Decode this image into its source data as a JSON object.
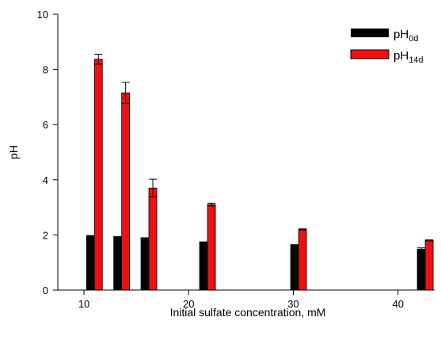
{
  "chart_data": {
    "type": "bar",
    "title": "",
    "xlabel": "Initial sulfate concentration, mM",
    "ylabel": "pH",
    "xlim": [
      7.5,
      43.5
    ],
    "ylim": [
      0,
      10
    ],
    "xticks": [
      10,
      20,
      30,
      40
    ],
    "yticks": [
      0,
      2,
      4,
      6,
      8,
      10
    ],
    "xtick_labels": [
      "10",
      "20",
      "30",
      "40"
    ],
    "ytick_labels": [
      "0",
      "2",
      "4",
      "6",
      "8",
      "10"
    ],
    "x": [
      11,
      13.6,
      16.2,
      21.8,
      30.5,
      42.6
    ],
    "grid": false,
    "legend_position": "top-right",
    "series": [
      {
        "name": "pH0d",
        "legend_main": "pH",
        "legend_sub": "0d",
        "color": "#000000",
        "values": [
          1.98,
          1.94,
          1.9,
          1.75,
          1.65,
          1.48
        ],
        "errors": [
          0,
          0,
          0,
          0,
          0,
          0.05
        ]
      },
      {
        "name": "pH14d",
        "legend_main": "pH",
        "legend_sub": "14d",
        "color": "#ee1111",
        "values": [
          8.37,
          7.15,
          3.7,
          3.1,
          2.2,
          1.8
        ],
        "errors": [
          0.18,
          0.38,
          0.32,
          0.05,
          0.02,
          0.02
        ]
      }
    ]
  }
}
